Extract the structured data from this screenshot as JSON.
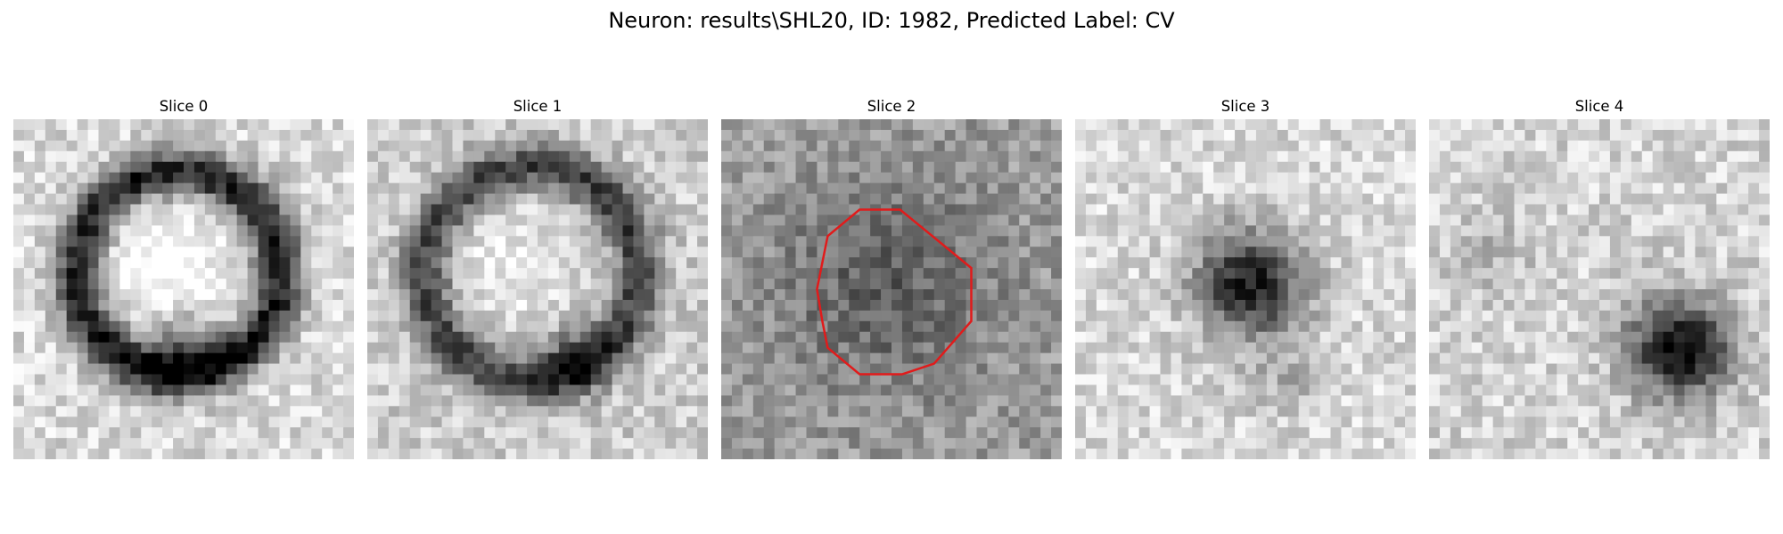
{
  "figure": {
    "title": "Neuron: results\\SHL20, ID: 1982, Predicted Label: CV"
  },
  "slices": [
    {
      "title": "Slice 0",
      "pattern": "ring",
      "contour": false
    },
    {
      "title": "Slice 1",
      "pattern": "ring-faint",
      "contour": false
    },
    {
      "title": "Slice 2",
      "pattern": "diffuse",
      "contour": true
    },
    {
      "title": "Slice 3",
      "pattern": "center-blob",
      "contour": false
    },
    {
      "title": "Slice 4",
      "pattern": "offset-blob",
      "contour": false
    }
  ],
  "overlay": {
    "contour_color": "#e11b1b",
    "contour_on_slice": "Slice 2"
  },
  "colormap": "gray"
}
